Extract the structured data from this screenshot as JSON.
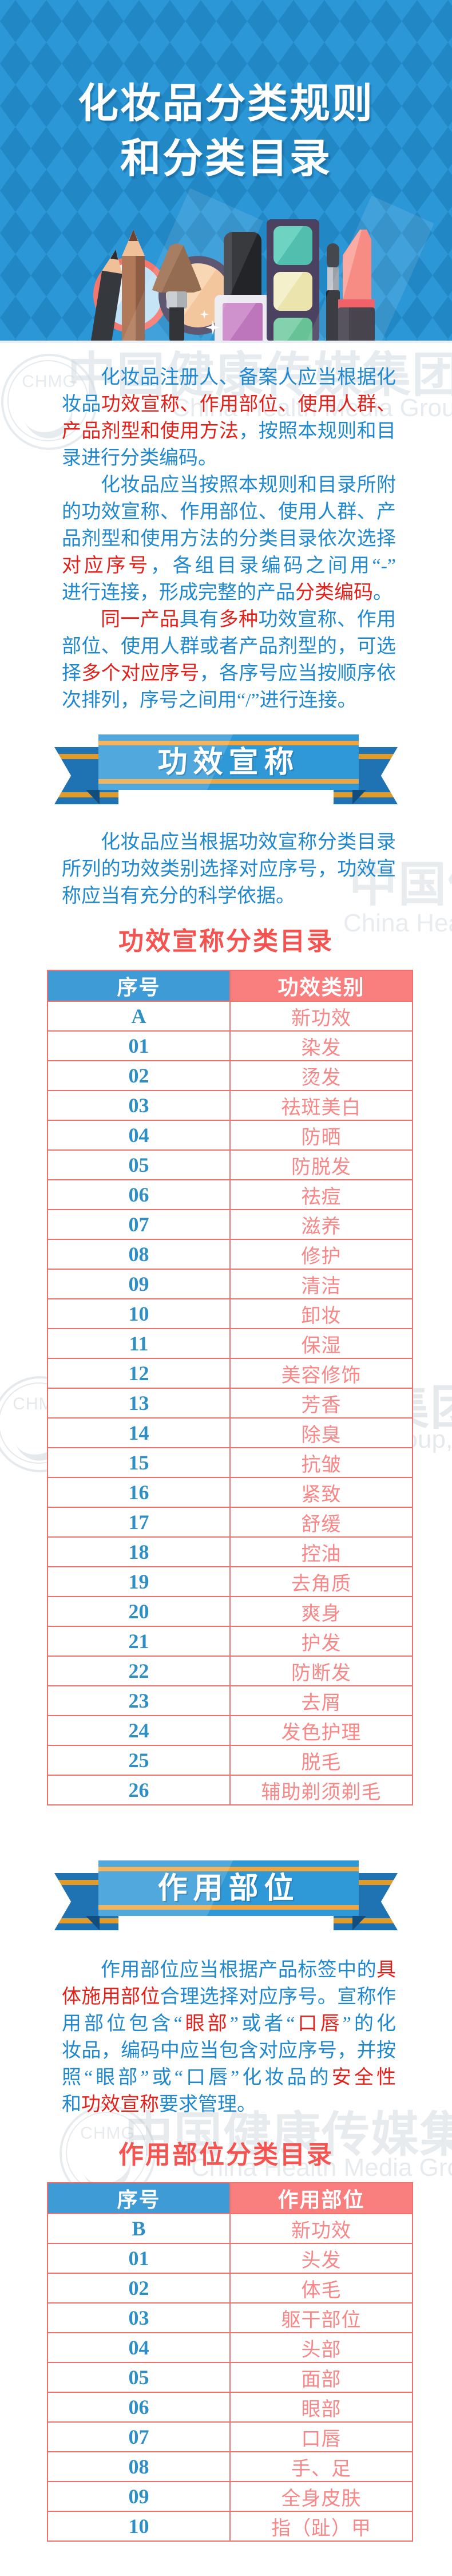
{
  "header": {
    "title_line1": "化妆品分类规则",
    "title_line2": "和分类目录"
  },
  "colors": {
    "bg_blue_light": "#2b97d7",
    "bg_blue_dark": "#2187c5",
    "body_blue": "#1f88ce",
    "body_red": "#e3211a",
    "heading_red": "#f4534f",
    "ribbon_blue": "#2f98d6",
    "ribbon_gold": "#efa640",
    "table_border": "#f0716b",
    "table_header_blue": "#3f9bd5",
    "table_header_pink": "#f97f7f",
    "number_blue": "#2e8fc6",
    "category_pink": "#f88787"
  },
  "watermark": {
    "cn": "中国健康传媒集团",
    "en": "China Health Media Group, Ltd",
    "logo_text": "CHMG"
  },
  "banners": {
    "claims": "功效宣称",
    "parts": "作用部位"
  },
  "headings": {
    "claims_catalog": "功效宣称分类目录",
    "parts_catalog": "作用部位分类目录"
  },
  "paragraphs": {
    "p1": {
      "lines": [
        {
          "indent": true,
          "flush": true,
          "segments": [
            {
              "text": "化妆品注册人、备案人应当根据化",
              "color": "blue"
            }
          ]
        },
        {
          "indent": false,
          "flush": true,
          "segments": [
            {
              "text": "妆品",
              "color": "blue"
            },
            {
              "text": "功效宣称、作用部位、使用人群、",
              "color": "red"
            }
          ]
        },
        {
          "indent": false,
          "flush": true,
          "segments": [
            {
              "text": "产品剂型和使用方法",
              "color": "red"
            },
            {
              "text": "，按照本规则和目",
              "color": "blue"
            }
          ]
        },
        {
          "indent": false,
          "flush": false,
          "segments": [
            {
              "text": "录进行分类编码。",
              "color": "blue"
            }
          ]
        }
      ]
    },
    "p2": {
      "lines": [
        {
          "indent": true,
          "flush": true,
          "segments": [
            {
              "text": "化妆品应当按照本规则和目录所附",
              "color": "blue"
            }
          ]
        },
        {
          "indent": false,
          "flush": true,
          "segments": [
            {
              "text": "的功效宣称、作用部位、使用人群、产",
              "color": "blue"
            }
          ]
        },
        {
          "indent": false,
          "flush": true,
          "segments": [
            {
              "text": "品剂型和使用方法的分类目录依次选择",
              "color": "blue"
            }
          ]
        },
        {
          "indent": false,
          "flush": true,
          "segments": [
            {
              "text": "对应序号",
              "color": "red"
            },
            {
              "text": "，各组目录编码之间用“-”",
              "color": "blue"
            }
          ]
        },
        {
          "indent": false,
          "flush": false,
          "segments": [
            {
              "text": "进行连接，形成完整的产品",
              "color": "blue"
            },
            {
              "text": "分类编码",
              "color": "red"
            },
            {
              "text": "。",
              "color": "blue"
            }
          ]
        }
      ]
    },
    "p3": {
      "lines": [
        {
          "indent": true,
          "flush": true,
          "segments": [
            {
              "text": "同一产品",
              "color": "red"
            },
            {
              "text": "具有",
              "color": "blue"
            },
            {
              "text": "多种",
              "color": "red"
            },
            {
              "text": "功效宣称、作用",
              "color": "blue"
            }
          ]
        },
        {
          "indent": false,
          "flush": true,
          "segments": [
            {
              "text": "部位、使用人群或者产品剂型的，可选",
              "color": "blue"
            }
          ]
        },
        {
          "indent": false,
          "flush": true,
          "segments": [
            {
              "text": "择",
              "color": "blue"
            },
            {
              "text": "多个对应序号",
              "color": "red"
            },
            {
              "text": "，各序号应当按顺序依",
              "color": "blue"
            }
          ]
        },
        {
          "indent": false,
          "flush": false,
          "segments": [
            {
              "text": "次排列，序号之间用“/”进行连接。",
              "color": "blue"
            }
          ]
        }
      ]
    },
    "p4": {
      "lines": [
        {
          "indent": true,
          "flush": true,
          "segments": [
            {
              "text": "化妆品应当根据功效宣称分类目录",
              "color": "blue"
            }
          ]
        },
        {
          "indent": false,
          "flush": true,
          "segments": [
            {
              "text": "所列的功效类别选择对应序号，功效宣",
              "color": "blue"
            }
          ]
        },
        {
          "indent": false,
          "flush": false,
          "segments": [
            {
              "text": "称应当有充分的科学依据。",
              "color": "blue"
            }
          ]
        }
      ]
    },
    "p5": {
      "lines": [
        {
          "indent": true,
          "flush": true,
          "segments": [
            {
              "text": "作用部位应当根据产品标签中的",
              "color": "blue"
            },
            {
              "text": "具",
              "color": "red"
            }
          ]
        },
        {
          "indent": false,
          "flush": true,
          "segments": [
            {
              "text": "体施用部位",
              "color": "red"
            },
            {
              "text": "合理选择对应序号。宣称作",
              "color": "blue"
            }
          ]
        },
        {
          "indent": false,
          "flush": true,
          "segments": [
            {
              "text": "用部位包含“",
              "color": "blue"
            },
            {
              "text": "眼部",
              "color": "red"
            },
            {
              "text": "”或者“",
              "color": "blue"
            },
            {
              "text": "口唇",
              "color": "red"
            },
            {
              "text": "”的化",
              "color": "blue"
            }
          ]
        },
        {
          "indent": false,
          "flush": true,
          "segments": [
            {
              "text": "妆品，编码中应当包含对应序号，并按",
              "color": "blue"
            }
          ]
        },
        {
          "indent": false,
          "flush": true,
          "segments": [
            {
              "text": "照“眼部”或“口唇”化妆品的",
              "color": "blue"
            },
            {
              "text": "安全性",
              "color": "red"
            }
          ]
        },
        {
          "indent": false,
          "flush": false,
          "segments": [
            {
              "text": "和",
              "color": "blue"
            },
            {
              "text": "功效宣称",
              "color": "red"
            },
            {
              "text": "要求管理。",
              "color": "blue"
            }
          ]
        }
      ]
    }
  },
  "tables": {
    "claims": {
      "columns": [
        "序号",
        "功效类别"
      ],
      "rows": [
        [
          "A",
          "新功效"
        ],
        [
          "01",
          "染发"
        ],
        [
          "02",
          "烫发"
        ],
        [
          "03",
          "祛斑美白"
        ],
        [
          "04",
          "防晒"
        ],
        [
          "05",
          "防脱发"
        ],
        [
          "06",
          "祛痘"
        ],
        [
          "07",
          "滋养"
        ],
        [
          "08",
          "修护"
        ],
        [
          "09",
          "清洁"
        ],
        [
          "10",
          "卸妆"
        ],
        [
          "11",
          "保湿"
        ],
        [
          "12",
          "美容修饰"
        ],
        [
          "13",
          "芳香"
        ],
        [
          "14",
          "除臭"
        ],
        [
          "15",
          "抗皱"
        ],
        [
          "16",
          "紧致"
        ],
        [
          "17",
          "舒缓"
        ],
        [
          "18",
          "控油"
        ],
        [
          "19",
          "去角质"
        ],
        [
          "20",
          "爽身"
        ],
        [
          "21",
          "护发"
        ],
        [
          "22",
          "防断发"
        ],
        [
          "23",
          "去屑"
        ],
        [
          "24",
          "发色护理"
        ],
        [
          "25",
          "脱毛"
        ],
        [
          "26",
          "辅助剃须剃毛"
        ]
      ]
    },
    "parts": {
      "columns": [
        "序号",
        "作用部位"
      ],
      "rows": [
        [
          "B",
          "新功效"
        ],
        [
          "01",
          "头发"
        ],
        [
          "02",
          "体毛"
        ],
        [
          "03",
          "躯干部位"
        ],
        [
          "04",
          "头部"
        ],
        [
          "05",
          "面部"
        ],
        [
          "06",
          "眼部"
        ],
        [
          "07",
          "口唇"
        ],
        [
          "08",
          "手、足"
        ],
        [
          "09",
          "全身皮肤"
        ],
        [
          "10",
          "指（趾）甲"
        ]
      ]
    }
  }
}
